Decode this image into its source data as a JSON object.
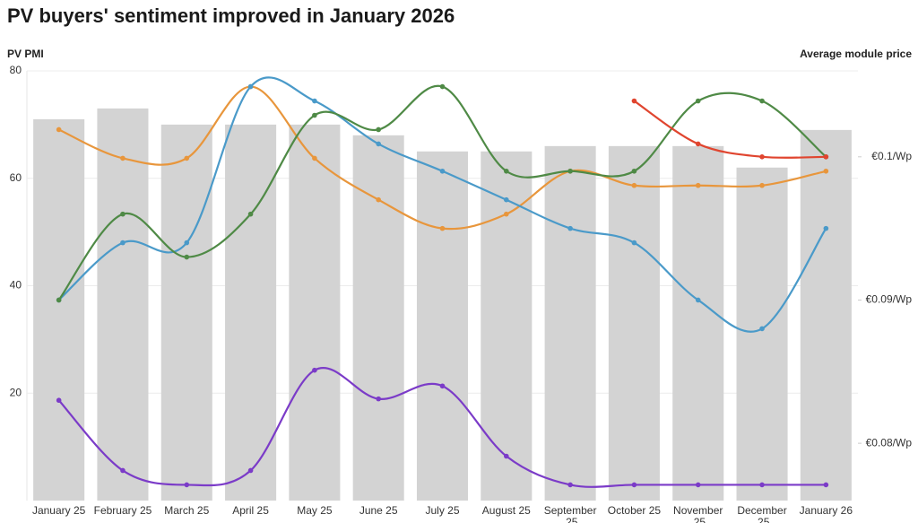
{
  "chart_data": {
    "type": "bar-line",
    "title": "PV buyers' sentiment improved in January 2026",
    "y_label": "PV PMI",
    "y2_label": "Average module price",
    "categories": [
      "January 25",
      "February 25",
      "March 25",
      "April 25",
      "May 25",
      "June 25",
      "July 25",
      "August 25",
      "September 25",
      "October 25",
      "November 25",
      "December 25",
      "January 26"
    ],
    "values": [
      71,
      73,
      70,
      70,
      70,
      68,
      65,
      65,
      66,
      66,
      66,
      62,
      69
    ],
    "color": "#d3d3d3",
    "ylim": [
      0,
      80
    ],
    "yticks": [
      20,
      40,
      60,
      80
    ],
    "y2lim": [
      0.076,
      0.106
    ],
    "y2ticks": [
      {
        "value": 0.08,
        "label": "€0.08/Wp"
      },
      {
        "value": 0.09,
        "label": "€0.09/Wp"
      },
      {
        "value": 0.1,
        "label": "€0.1/Wp"
      }
    ],
    "grid": true,
    "series": [
      {
        "color": "#e8963c",
        "axis": "y2",
        "values": [
          0.1019,
          0.0999,
          0.0999,
          0.1049,
          0.0999,
          0.097,
          0.095,
          0.096,
          0.099,
          0.098,
          0.098,
          0.098,
          0.099
        ]
      },
      {
        "color": "#4a9ac9",
        "axis": "y2",
        "values": [
          0.09,
          0.094,
          0.094,
          0.1049,
          0.1039,
          0.1009,
          0.099,
          0.097,
          0.095,
          0.094,
          0.09,
          0.088,
          0.095
        ]
      },
      {
        "color": "#4f8a46",
        "axis": "y2",
        "values": [
          0.09,
          0.096,
          0.093,
          0.096,
          0.1029,
          0.1019,
          0.1049,
          0.099,
          0.099,
          0.099,
          0.1039,
          0.1039,
          0.1
        ]
      },
      {
        "color": "#e0452f",
        "axis": "y2",
        "values": [
          null,
          null,
          null,
          null,
          null,
          null,
          null,
          null,
          null,
          0.1039,
          0.1009,
          0.1,
          0.1
        ]
      },
      {
        "color": "#7b3bc8",
        "axis": "y2",
        "values": [
          0.083,
          0.0781,
          0.0771,
          0.0781,
          0.0851,
          0.0831,
          0.084,
          0.0791,
          0.0771,
          0.0771,
          0.0771,
          0.0771,
          0.0771
        ]
      }
    ]
  }
}
